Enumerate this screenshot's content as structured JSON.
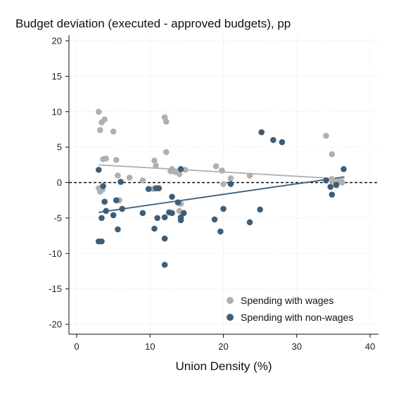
{
  "chart_data": {
    "type": "scatter",
    "title": "Budget deviation (executed - approved budgets), pp",
    "xlabel": "Union Density (%)",
    "ylabel": "",
    "xlim": [
      0,
      40
    ],
    "ylim": [
      -20,
      20
    ],
    "xticks": [
      "0",
      "10",
      "20",
      "30",
      "40"
    ],
    "yticks": [
      "20",
      "15",
      "10",
      "5",
      "0",
      "-5",
      "-10",
      "-15",
      "-20"
    ],
    "grid": true,
    "reference_line_y": 0,
    "legend_position": "bottom-right",
    "series": [
      {
        "name": "Spending with wages",
        "color": "#b0b0b0",
        "points": [
          [
            3.0,
            10.0
          ],
          [
            3.4,
            8.5
          ],
          [
            3.8,
            8.9
          ],
          [
            3.2,
            7.4
          ],
          [
            5.0,
            7.2
          ],
          [
            3.6,
            3.3
          ],
          [
            4.0,
            3.4
          ],
          [
            5.4,
            3.2
          ],
          [
            7.2,
            0.7
          ],
          [
            5.6,
            1.0
          ],
          [
            6.0,
            0.1
          ],
          [
            9.0,
            0.3
          ],
          [
            3.0,
            -0.8
          ],
          [
            3.5,
            -1.0
          ],
          [
            3.2,
            -1.3
          ],
          [
            5.8,
            -2.5
          ],
          [
            12.0,
            9.2
          ],
          [
            12.2,
            8.6
          ],
          [
            12.2,
            4.3
          ],
          [
            10.6,
            3.1
          ],
          [
            10.8,
            2.4
          ],
          [
            12.8,
            1.6
          ],
          [
            13.0,
            1.9
          ],
          [
            13.4,
            1.5
          ],
          [
            14.0,
            1.2
          ],
          [
            14.2,
            1.9
          ],
          [
            14.8,
            1.8
          ],
          [
            10.4,
            -0.9
          ],
          [
            11.0,
            -0.8
          ],
          [
            14.0,
            -4.0
          ],
          [
            14.2,
            -3.0
          ],
          [
            19.0,
            2.3
          ],
          [
            19.8,
            1.7
          ],
          [
            21.0,
            0.6
          ],
          [
            20.0,
            -0.2
          ],
          [
            23.6,
            1.0
          ],
          [
            34.0,
            6.6
          ],
          [
            34.8,
            4.0
          ],
          [
            35.0,
            0.2
          ],
          [
            35.8,
            0.2
          ],
          [
            36.2,
            0.0
          ],
          [
            35.4,
            -0.4
          ],
          [
            34.8,
            0.5
          ]
        ]
      },
      {
        "name": "Spending with non-wages",
        "color": "#3e5e78",
        "points": [
          [
            3.0,
            1.8
          ],
          [
            3.0,
            -8.3
          ],
          [
            3.4,
            -8.3
          ],
          [
            3.6,
            -0.5
          ],
          [
            3.8,
            -2.7
          ],
          [
            4.0,
            -4.0
          ],
          [
            3.4,
            -5.0
          ],
          [
            5.0,
            -4.6
          ],
          [
            5.4,
            -2.5
          ],
          [
            5.6,
            -6.6
          ],
          [
            6.2,
            -3.7
          ],
          [
            6.0,
            0.1
          ],
          [
            9.0,
            -4.3
          ],
          [
            9.8,
            -0.9
          ],
          [
            10.8,
            -0.8
          ],
          [
            11.2,
            -0.8
          ],
          [
            10.6,
            -6.5
          ],
          [
            11.0,
            -5.0
          ],
          [
            12.0,
            -4.9
          ],
          [
            12.0,
            -7.9
          ],
          [
            12.0,
            -11.6
          ],
          [
            12.6,
            -4.2
          ],
          [
            13.0,
            -4.3
          ],
          [
            13.0,
            -2.0
          ],
          [
            13.8,
            -2.8
          ],
          [
            14.2,
            -4.9
          ],
          [
            14.2,
            -5.3
          ],
          [
            14.6,
            -4.3
          ],
          [
            14.2,
            1.9
          ],
          [
            18.8,
            -5.2
          ],
          [
            19.6,
            -6.9
          ],
          [
            20.0,
            -3.7
          ],
          [
            21.0,
            -0.2
          ],
          [
            23.6,
            -5.6
          ],
          [
            25.0,
            -3.8
          ],
          [
            25.2,
            7.1
          ],
          [
            26.8,
            6.0
          ],
          [
            28.0,
            5.7
          ],
          [
            34.0,
            0.3
          ],
          [
            34.6,
            -0.6
          ],
          [
            34.8,
            -1.7
          ],
          [
            35.4,
            -0.3
          ],
          [
            36.4,
            1.9
          ]
        ]
      }
    ],
    "fit_lines": [
      {
        "series": "Spending with wages",
        "x": [
          3.0,
          36.5
        ],
        "y": [
          2.5,
          0.5
        ]
      },
      {
        "series": "Spending with non-wages",
        "x": [
          3.0,
          36.5
        ],
        "y": [
          -4.2,
          0.8
        ]
      }
    ]
  }
}
